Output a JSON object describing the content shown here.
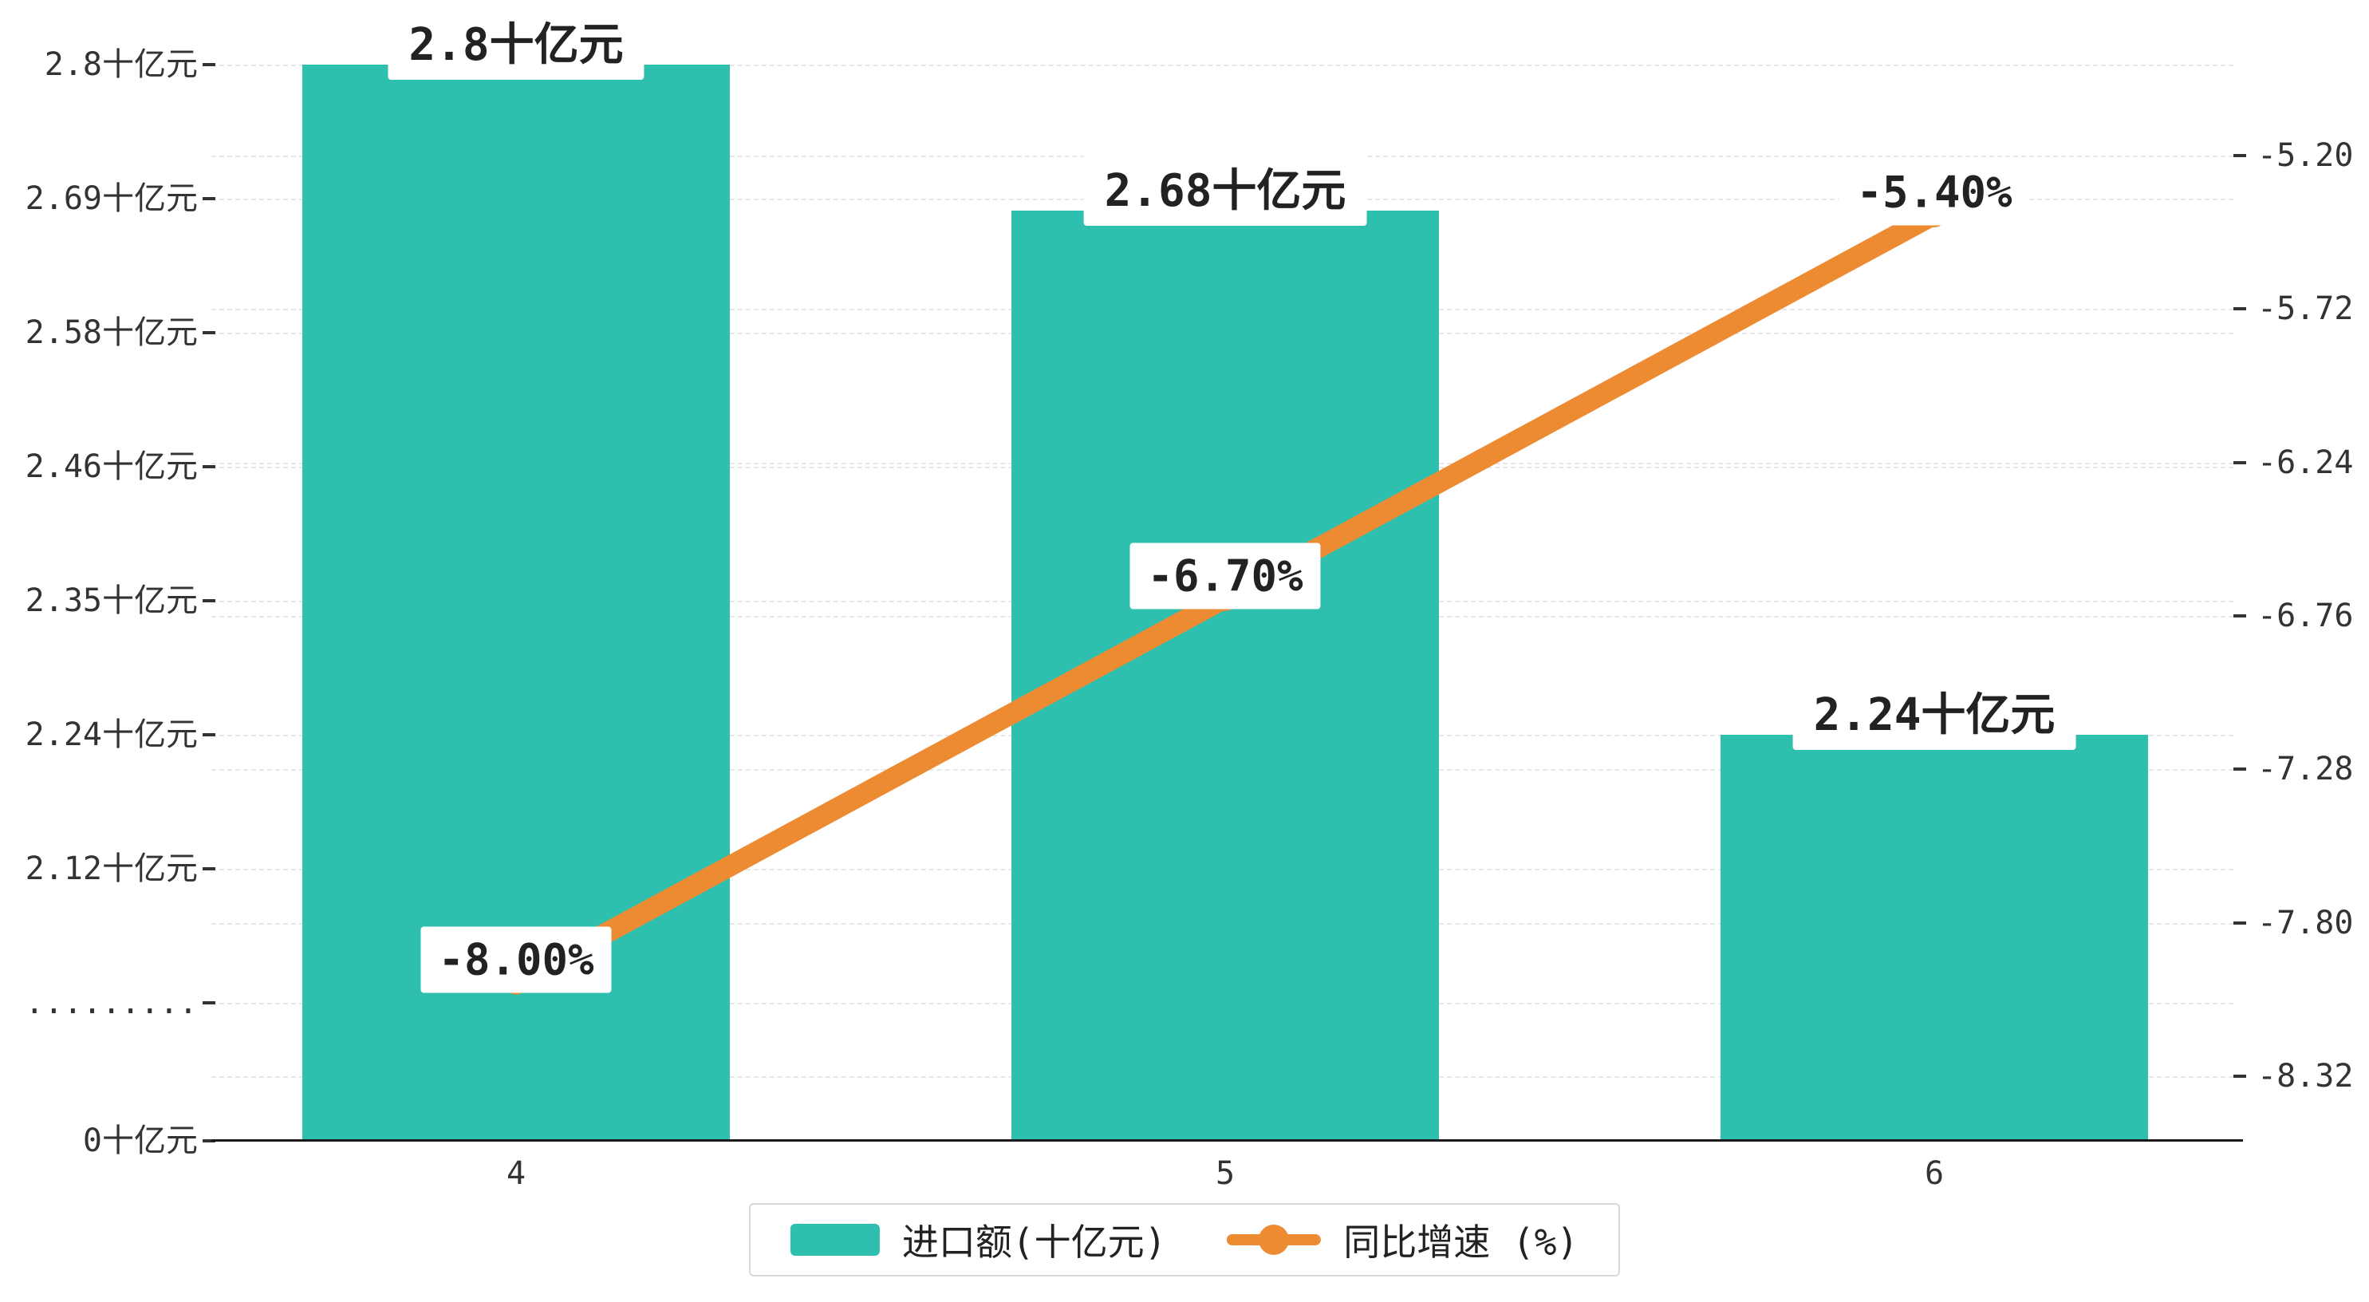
{
  "chart_data": {
    "type": "bar",
    "combo": "bar+line dual-axis",
    "categories": [
      "4",
      "5",
      "6"
    ],
    "series": [
      {
        "name": "进口额(十亿元)",
        "type": "bar",
        "axis": "left",
        "color": "#2ebfae",
        "values": [
          2.8,
          2.68,
          2.24
        ],
        "labels": [
          "2.8十亿元",
          "2.68十亿元",
          "2.24十亿元"
        ]
      },
      {
        "name": "同比增速 (%)",
        "type": "line",
        "axis": "right",
        "color": "#ed8b33",
        "values": [
          -8.0,
          -6.7,
          -5.4
        ],
        "labels": [
          "-8.00%",
          "-6.70%",
          "-5.40%"
        ]
      }
    ],
    "left_axis": {
      "unit": "十亿元",
      "axis_break": true,
      "ticks": [
        "2.8十亿元",
        "2.69十亿元",
        "2.58十亿元",
        "2.46十亿元",
        "2.35十亿元",
        "2.24十亿元",
        "2.12十亿元",
        ".........",
        "0十亿元"
      ],
      "tick_values": [
        2.8,
        2.69,
        2.58,
        2.46,
        2.35,
        2.24,
        2.12,
        null,
        0
      ]
    },
    "right_axis": {
      "ticks": [
        "-5.20",
        "-5.72",
        "-6.24",
        "-6.76",
        "-7.28",
        "-7.80",
        "-8.32"
      ],
      "tick_values": [
        -5.2,
        -5.72,
        -6.24,
        -6.76,
        -7.28,
        -7.8,
        -8.32
      ]
    },
    "legend": {
      "position": "bottom",
      "items": [
        "进口额(十亿元)",
        "同比增速 (%)"
      ]
    },
    "grid": "dashed-horizontal",
    "background": "#ffffff"
  }
}
